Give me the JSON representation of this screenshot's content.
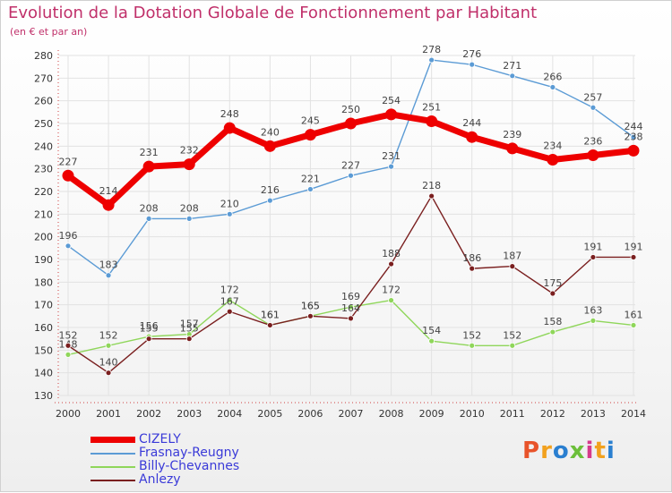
{
  "header": {
    "title": "Evolution de la Dotation Globale de Fonctionnement par Habitant",
    "subtitle": "(en € et par an)"
  },
  "logo": {
    "text": "Proxiti",
    "colors": [
      "#e8532a",
      "#f2a11e",
      "#2a7fd0",
      "#6cbf3a",
      "#d63a8c",
      "#f2a11e",
      "#2a7fd0"
    ]
  },
  "chart_data": {
    "type": "line",
    "title": "Evolution de la Dotation Globale de Fonctionnement par Habitant",
    "subtitle": "(en € et par an)",
    "xlabel": "",
    "ylabel": "",
    "ylim": [
      130,
      280
    ],
    "yticks": [
      130,
      140,
      150,
      160,
      170,
      180,
      190,
      200,
      210,
      220,
      230,
      240,
      250,
      260,
      270,
      280
    ],
    "grid": true,
    "legend_position": "bottom-left",
    "categories": [
      "2000",
      "2001",
      "2002",
      "2003",
      "2004",
      "2005",
      "2006",
      "2007",
      "2008",
      "2009",
      "2010",
      "2011",
      "2012",
      "2013",
      "2014"
    ],
    "series": [
      {
        "name": "CIZELY",
        "color": "#ee0000",
        "emphasis": true,
        "values": [
          227,
          214,
          231,
          232,
          248,
          240,
          245,
          250,
          254,
          251,
          244,
          239,
          234,
          236,
          238
        ]
      },
      {
        "name": "Frasnay-Reugny",
        "color": "#5b9bd5",
        "emphasis": false,
        "values": [
          196,
          183,
          208,
          208,
          210,
          216,
          221,
          227,
          231,
          278,
          276,
          271,
          266,
          257,
          244
        ]
      },
      {
        "name": "Billy-Chevannes",
        "color": "#8fd65a",
        "emphasis": false,
        "values": [
          148,
          152,
          156,
          157,
          172,
          161,
          165,
          169,
          172,
          154,
          152,
          152,
          158,
          163,
          161
        ]
      },
      {
        "name": "Anlezy",
        "color": "#7a1f1f",
        "emphasis": false,
        "values": [
          152,
          140,
          155,
          155,
          167,
          161,
          165,
          164,
          188,
          218,
          186,
          187,
          175,
          191,
          191
        ]
      }
    ]
  }
}
